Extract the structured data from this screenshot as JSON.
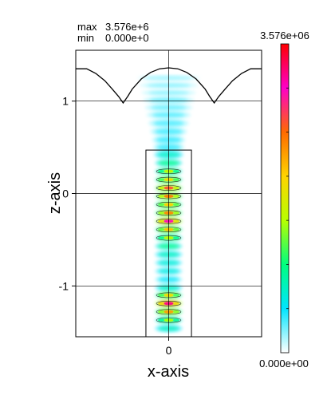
{
  "chart_data": {
    "type": "heatmap",
    "title": "",
    "xlabel": "x-axis",
    "ylabel": "z-axis",
    "stats": {
      "max_label": "max",
      "max_value": "3.576e+6",
      "min_label": "min",
      "min_value": "0.000e+0"
    },
    "colorbar": {
      "top_label": "3.576e+06",
      "bottom_label": "0.000e+00",
      "min": 0,
      "max": 3576000,
      "stops": [
        "#ffffff",
        "#00e5ff",
        "#00ff7f",
        "#b7ff00",
        "#ffd400",
        "#ff6a00",
        "#ff00c8",
        "#ff0000"
      ]
    },
    "xlim": [
      -1.02,
      1.02
    ],
    "ylim": [
      -1.55,
      1.55
    ],
    "x_ticks": [
      {
        "value": 0,
        "label": "0"
      }
    ],
    "y_ticks": [
      {
        "value": 1,
        "label": "1"
      },
      {
        "value": 0,
        "label": "0"
      },
      {
        "value": -1,
        "label": "-1"
      }
    ],
    "structure": {
      "rect_x": [
        -0.25,
        0.25
      ],
      "rect_z": [
        -1.55,
        0.47
      ]
    },
    "surface_profile": {
      "x": [
        -1.02,
        -0.9,
        -0.8,
        -0.7,
        -0.62,
        -0.55,
        -0.5,
        -0.45,
        -0.4,
        -0.3,
        -0.2,
        -0.1,
        0,
        0.1,
        0.2,
        0.3,
        0.4,
        0.45,
        0.5,
        0.55,
        0.62,
        0.7,
        0.8,
        0.9,
        1.02
      ],
      "z": [
        1.35,
        1.35,
        1.3,
        1.22,
        1.13,
        1.05,
        0.98,
        1.05,
        1.13,
        1.24,
        1.31,
        1.35,
        1.36,
        1.35,
        1.31,
        1.24,
        1.13,
        1.05,
        0.98,
        1.05,
        1.13,
        1.22,
        1.3,
        1.35,
        1.35
      ]
    },
    "field_blobs": [
      {
        "x": 0,
        "z": 1.25,
        "rx": 0.34,
        "rz": 0.02,
        "v": 0.08
      },
      {
        "x": 0,
        "z": 1.17,
        "rx": 0.32,
        "rz": 0.02,
        "v": 0.1
      },
      {
        "x": 0,
        "z": 1.09,
        "rx": 0.3,
        "rz": 0.02,
        "v": 0.1
      },
      {
        "x": 0,
        "z": 1.01,
        "rx": 0.28,
        "rz": 0.025,
        "v": 0.12
      },
      {
        "x": 0,
        "z": 0.93,
        "rx": 0.26,
        "rz": 0.025,
        "v": 0.12
      },
      {
        "x": 0,
        "z": 0.85,
        "rx": 0.24,
        "rz": 0.025,
        "v": 0.14
      },
      {
        "x": 0,
        "z": 0.76,
        "rx": 0.22,
        "rz": 0.03,
        "v": 0.14
      },
      {
        "x": 0,
        "z": 0.67,
        "rx": 0.2,
        "rz": 0.03,
        "v": 0.15
      },
      {
        "x": 0,
        "z": 0.58,
        "rx": 0.18,
        "rz": 0.03,
        "v": 0.16
      },
      {
        "x": 0,
        "z": 0.5,
        "rx": 0.17,
        "rz": 0.03,
        "v": 0.16
      },
      {
        "x": 0,
        "z": 0.42,
        "rx": 0.16,
        "rz": 0.03,
        "v": 0.28
      },
      {
        "x": 0,
        "z": 0.33,
        "rx": 0.15,
        "rz": 0.025,
        "v": 0.38
      },
      {
        "x": 0,
        "z": 0.24,
        "rx": 0.15,
        "rz": 0.025,
        "v": 0.45
      },
      {
        "x": 0,
        "z": 0.15,
        "rx": 0.15,
        "rz": 0.025,
        "v": 0.55
      },
      {
        "x": 0,
        "z": 0.06,
        "rx": 0.15,
        "rz": 0.025,
        "v": 0.75
      },
      {
        "x": 0,
        "z": -0.03,
        "rx": 0.15,
        "rz": 0.025,
        "v": 0.7
      },
      {
        "x": 0,
        "z": -0.12,
        "rx": 0.15,
        "rz": 0.025,
        "v": 0.58
      },
      {
        "x": 0,
        "z": -0.21,
        "rx": 0.15,
        "rz": 0.025,
        "v": 0.68
      },
      {
        "x": 0,
        "z": -0.3,
        "rx": 0.15,
        "rz": 0.025,
        "v": 0.85
      },
      {
        "x": 0,
        "z": -0.39,
        "rx": 0.15,
        "rz": 0.025,
        "v": 0.6
      },
      {
        "x": 0,
        "z": -0.48,
        "rx": 0.15,
        "rz": 0.025,
        "v": 0.45
      },
      {
        "x": 0,
        "z": -0.57,
        "rx": 0.15,
        "rz": 0.025,
        "v": 0.38
      },
      {
        "x": 0,
        "z": -0.66,
        "rx": 0.15,
        "rz": 0.025,
        "v": 0.3
      },
      {
        "x": 0,
        "z": -0.75,
        "rx": 0.15,
        "rz": 0.025,
        "v": 0.26
      },
      {
        "x": 0,
        "z": -0.84,
        "rx": 0.15,
        "rz": 0.025,
        "v": 0.24
      },
      {
        "x": 0,
        "z": -0.93,
        "rx": 0.15,
        "rz": 0.025,
        "v": 0.2
      },
      {
        "x": 0,
        "z": -1.02,
        "rx": 0.15,
        "rz": 0.025,
        "v": 0.3
      },
      {
        "x": 0,
        "z": -1.1,
        "rx": 0.15,
        "rz": 0.025,
        "v": 0.55
      },
      {
        "x": 0,
        "z": -1.19,
        "rx": 0.15,
        "rz": 0.025,
        "v": 0.9
      },
      {
        "x": 0,
        "z": -1.28,
        "rx": 0.15,
        "rz": 0.025,
        "v": 0.65
      },
      {
        "x": 0,
        "z": -1.37,
        "rx": 0.15,
        "rz": 0.025,
        "v": 0.42
      },
      {
        "x": 0,
        "z": -1.46,
        "rx": 0.15,
        "rz": 0.025,
        "v": 0.3
      }
    ]
  }
}
